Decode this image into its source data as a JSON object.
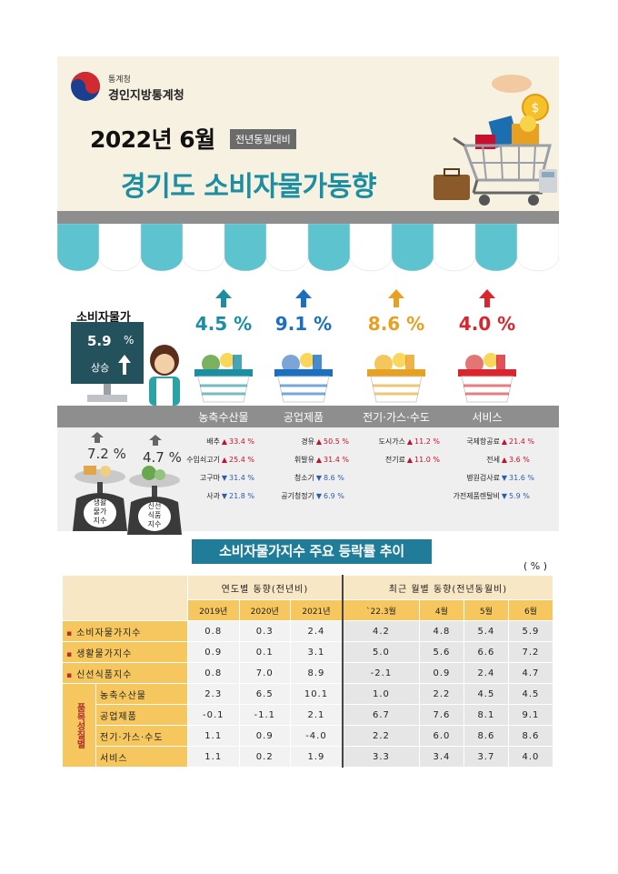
{
  "header": {
    "org_small": "통계청",
    "org_name": "경인지방통계청",
    "year_month": "2022년 6월",
    "period_badge": "전년동월대비",
    "title": "경기도 소비자물가동향"
  },
  "cpi": {
    "label": "소비자물가",
    "value": "5.9",
    "unit": "%",
    "direction": "상승"
  },
  "categories": [
    {
      "name": "농축수산물",
      "value": "4.5 %",
      "color": "#1b8ea1",
      "items": [
        {
          "name": "배추",
          "dir": "up",
          "value": "33.4 %"
        },
        {
          "name": "수입쇠고기",
          "dir": "up",
          "value": "25.4 %"
        },
        {
          "name": "고구마",
          "dir": "down",
          "value": "31.4 %"
        },
        {
          "name": "사과",
          "dir": "down",
          "value": "21.8 %"
        }
      ]
    },
    {
      "name": "공업제품",
      "value": "9.1 %",
      "color": "#1a6fbf",
      "items": [
        {
          "name": "경유",
          "dir": "up",
          "value": "50.5 %"
        },
        {
          "name": "휘발유",
          "dir": "up",
          "value": "31.4 %"
        },
        {
          "name": "청소기",
          "dir": "down",
          "value": "8.6 %"
        },
        {
          "name": "공기청정기",
          "dir": "down",
          "value": "6.9 %"
        }
      ]
    },
    {
      "name": "전기·가스·수도",
      "value": "8.6 %",
      "color": "#e8a020",
      "items": [
        {
          "name": "도시가스",
          "dir": "up",
          "value": "11.2 %"
        },
        {
          "name": "전기료",
          "dir": "up",
          "value": "11.0 %"
        }
      ]
    },
    {
      "name": "서비스",
      "value": "4.0 %",
      "color": "#d9262e",
      "items": [
        {
          "name": "국제항공료",
          "dir": "up",
          "value": "21.4 %"
        },
        {
          "name": "전세",
          "dir": "up",
          "value": "3.6 %"
        },
        {
          "name": "병원검사료",
          "dir": "down",
          "value": "31.6 %"
        },
        {
          "name": "가전제품렌탈비",
          "dir": "down",
          "value": "5.9 %"
        }
      ]
    }
  ],
  "sub_indices": {
    "living": {
      "value": "7.2 %",
      "label_lines": [
        "생활",
        "물가",
        "지수"
      ]
    },
    "fresh": {
      "value": "4.7 %",
      "label_lines": [
        "신선",
        "식품",
        "지수"
      ]
    }
  },
  "table": {
    "title": "소비자물가지수 주요 등락률 추이",
    "unit": "( % )",
    "group_yearly": "연도별 동향(전년비)",
    "group_monthly": "최근 월별 동향(전년동월비)",
    "columns": [
      "2019년",
      "2020년",
      "2021년",
      "`22.3월",
      "4월",
      "5월",
      "6월"
    ],
    "group_label": "품목성질별",
    "rows": [
      {
        "label": "소비자물가지수",
        "values": [
          "0.8",
          "0.3",
          "2.4",
          "4.2",
          "4.8",
          "5.4",
          "5.9"
        ]
      },
      {
        "label": "생활물가지수",
        "values": [
          "0.9",
          "0.1",
          "3.1",
          "5.0",
          "5.6",
          "6.6",
          "7.2"
        ]
      },
      {
        "label": "신선식품지수",
        "values": [
          "0.8",
          "7.0",
          "8.9",
          "-2.1",
          "0.9",
          "2.4",
          "4.7"
        ]
      },
      {
        "label": "농축수산물",
        "values": [
          "2.3",
          "6.5",
          "10.1",
          "1.0",
          "2.2",
          "4.5",
          "4.5"
        ]
      },
      {
        "label": "공업제품",
        "values": [
          "-0.1",
          "-1.1",
          "2.1",
          "6.7",
          "7.6",
          "8.1",
          "9.1"
        ]
      },
      {
        "label": "전기·가스·수도",
        "values": [
          "1.1",
          "0.9",
          "-4.0",
          "2.2",
          "6.0",
          "8.6",
          "8.6"
        ]
      },
      {
        "label": "서비스",
        "values": [
          "1.1",
          "0.2",
          "1.9",
          "3.3",
          "3.4",
          "3.7",
          "4.0"
        ]
      }
    ]
  },
  "colors": {
    "teal": "#1b8ea1",
    "dark_teal": "#24525c",
    "header_bg": "#f7f1e1",
    "band_gray": "#8e8e8e",
    "table_header": "#f6c75e",
    "table_title": "#1f7d99"
  }
}
